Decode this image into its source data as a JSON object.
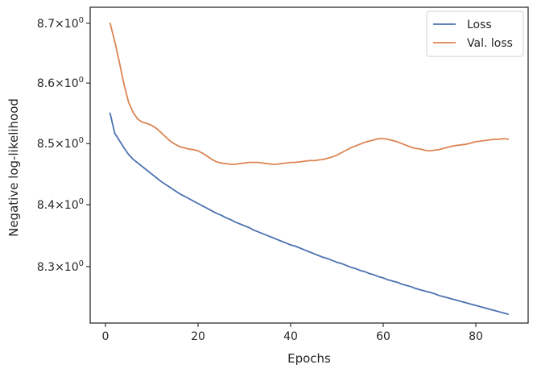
{
  "chart_data": {
    "type": "line",
    "title": "",
    "xlabel": "Epochs",
    "ylabel": "Negative log-likelihood",
    "xscale": "linear",
    "yscale": "log",
    "xlim": [
      -3.3,
      91.3
    ],
    "ylim": [
      8.21,
      8.727
    ],
    "x_ticks": [
      0,
      20,
      40,
      60,
      80
    ],
    "x_tick_labels": [
      "0",
      "20",
      "40",
      "60",
      "80"
    ],
    "y_ticks": [
      8.3,
      8.4,
      8.5,
      8.6,
      8.7
    ],
    "y_tick_labels": [
      {
        "base": "8.3",
        "times": "×10",
        "exp": "0"
      },
      {
        "base": "8.4",
        "times": "×10",
        "exp": "0"
      },
      {
        "base": "8.5",
        "times": "×10",
        "exp": "0"
      },
      {
        "base": "8.6",
        "times": "×10",
        "exp": "0"
      },
      {
        "base": "8.7",
        "times": "×10",
        "exp": "0"
      }
    ],
    "grid": false,
    "legend_position": "top-right",
    "x": [
      1,
      2,
      3,
      4,
      5,
      6,
      7,
      8,
      9,
      10,
      11,
      12,
      13,
      14,
      15,
      16,
      17,
      18,
      19,
      20,
      21,
      22,
      23,
      24,
      25,
      26,
      27,
      28,
      29,
      30,
      31,
      32,
      33,
      34,
      35,
      36,
      37,
      38,
      39,
      40,
      41,
      42,
      43,
      44,
      45,
      46,
      47,
      48,
      49,
      50,
      51,
      52,
      53,
      54,
      55,
      56,
      57,
      58,
      59,
      60,
      61,
      62,
      63,
      64,
      65,
      66,
      67,
      68,
      69,
      70,
      71,
      72,
      73,
      74,
      75,
      76,
      77,
      78,
      79,
      80,
      81,
      82,
      83,
      84,
      85,
      86,
      87
    ],
    "series": [
      {
        "name": "Loss",
        "color": "#4c72b0",
        "values": [
          8.55,
          8.517,
          8.505,
          8.493,
          8.482,
          8.474,
          8.468,
          8.462,
          8.456,
          8.45,
          8.444,
          8.438,
          8.433,
          8.428,
          8.423,
          8.418,
          8.414,
          8.41,
          8.406,
          8.402,
          8.398,
          8.394,
          8.39,
          8.386,
          8.383,
          8.379,
          8.376,
          8.372,
          8.369,
          8.366,
          8.363,
          8.359,
          8.356,
          8.353,
          8.35,
          8.347,
          8.344,
          8.341,
          8.338,
          8.335,
          8.333,
          8.33,
          8.327,
          8.324,
          8.321,
          8.318,
          8.315,
          8.313,
          8.31,
          8.307,
          8.305,
          8.302,
          8.299,
          8.297,
          8.294,
          8.292,
          8.289,
          8.287,
          8.284,
          8.282,
          8.279,
          8.277,
          8.275,
          8.272,
          8.27,
          8.268,
          8.265,
          8.263,
          8.261,
          8.259,
          8.257,
          8.254,
          8.252,
          8.25,
          8.248,
          8.246,
          8.244,
          8.242,
          8.24,
          8.238,
          8.236,
          8.234,
          8.232,
          8.23,
          8.228,
          8.226,
          8.224
        ]
      },
      {
        "name": "Val. loss",
        "color": "#dd8452",
        "values": [
          8.7,
          8.67,
          8.635,
          8.598,
          8.568,
          8.551,
          8.54,
          8.535,
          8.533,
          8.53,
          8.525,
          8.518,
          8.511,
          8.504,
          8.499,
          8.495,
          8.493,
          8.491,
          8.49,
          8.488,
          8.484,
          8.479,
          8.474,
          8.47,
          8.468,
          8.467,
          8.466,
          8.466,
          8.467,
          8.468,
          8.469,
          8.469,
          8.469,
          8.468,
          8.467,
          8.466,
          8.466,
          8.467,
          8.468,
          8.469,
          8.469,
          8.47,
          8.471,
          8.472,
          8.472,
          8.473,
          8.474,
          8.476,
          8.478,
          8.481,
          8.485,
          8.489,
          8.493,
          8.496,
          8.499,
          8.502,
          8.504,
          8.506,
          8.508,
          8.508,
          8.507,
          8.505,
          8.503,
          8.5,
          8.497,
          8.494,
          8.492,
          8.491,
          8.489,
          8.488,
          8.489,
          8.49,
          8.492,
          8.494,
          8.496,
          8.497,
          8.498,
          8.499,
          8.501,
          8.503,
          8.504,
          8.505,
          8.506,
          8.507,
          8.507,
          8.508,
          8.507
        ]
      }
    ]
  }
}
